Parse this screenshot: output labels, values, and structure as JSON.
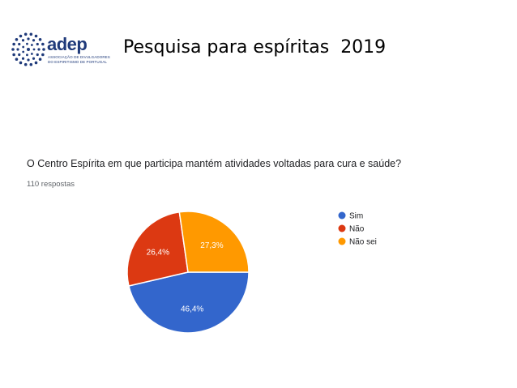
{
  "slide": {
    "title": "Pesquisa para espíritas  2019"
  },
  "logo": {
    "word": "adep",
    "subtitle_line1": "ASSOCIAÇÃO DE DIVULGADORES",
    "subtitle_line2": "DO ESPIRITISMO DE PORTUGAL",
    "color": "#1f3a7a"
  },
  "chart_data": {
    "type": "pie",
    "title": "O Centro Espírita em que participa mantém atividades voltadas para cura e saúde?",
    "subtitle": "110 respostas",
    "labels": [
      "Sim",
      "Não",
      "Não sei"
    ],
    "values": [
      46.4,
      26.4,
      27.3
    ],
    "data_labels": [
      "46,4%",
      "26,4%",
      "27,3%"
    ],
    "colors": [
      "#3366cc",
      "#dc3912",
      "#ff9900"
    ],
    "legend_position": "right"
  }
}
